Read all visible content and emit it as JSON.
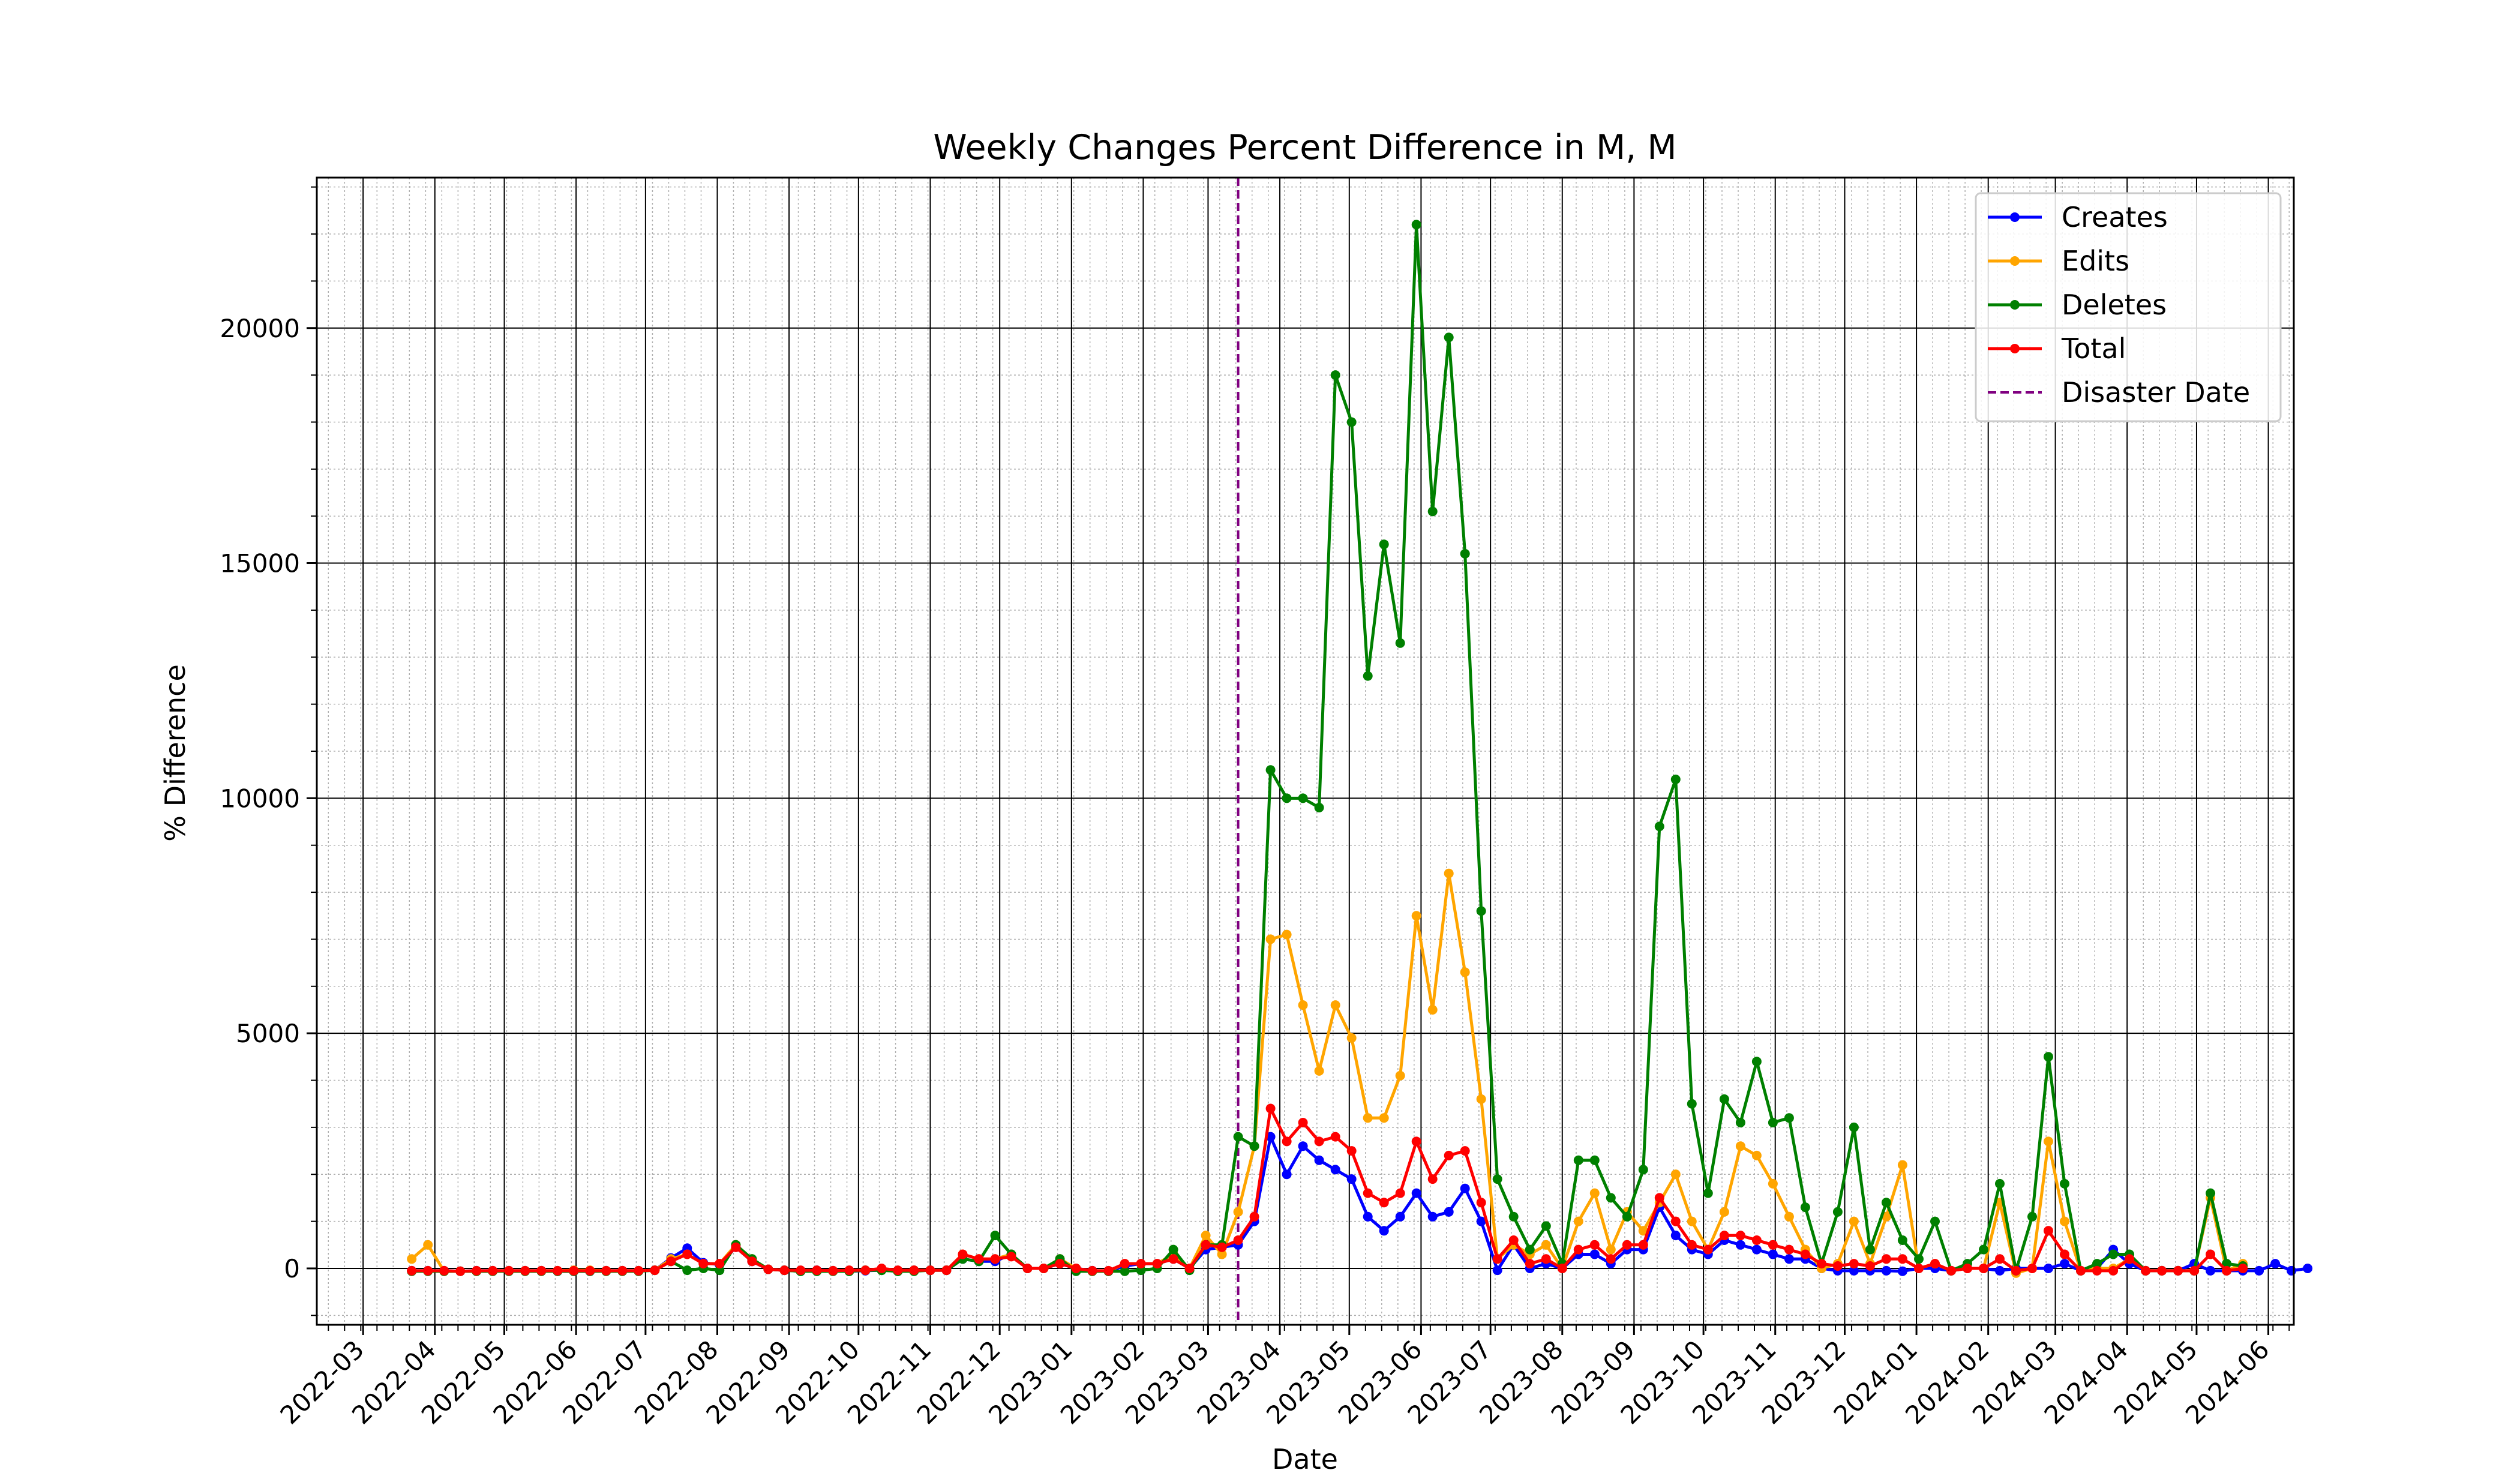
{
  "chart_data": {
    "type": "line",
    "title": "Weekly Changes Percent Difference in M, M",
    "xlabel": "Date",
    "ylabel": "% Difference",
    "ylim": [
      -1200,
      23200
    ],
    "xlim": [
      "2022-02-09",
      "2024-06-12"
    ],
    "grid": true,
    "legend_position": "upper right",
    "yticks": [
      0,
      5000,
      10000,
      15000,
      20000
    ],
    "xticks": [
      "2022-03",
      "2022-04",
      "2022-05",
      "2022-06",
      "2022-07",
      "2022-08",
      "2022-09",
      "2022-10",
      "2022-11",
      "2022-12",
      "2023-01",
      "2023-02",
      "2023-03",
      "2023-04",
      "2023-05",
      "2023-06",
      "2023-07",
      "2023-08",
      "2023-09",
      "2023-10",
      "2023-11",
      "2023-12",
      "2024-01",
      "2024-02",
      "2024-03",
      "2024-04",
      "2024-05",
      "2024-06"
    ],
    "disaster_date": "2023-03-14",
    "x_start": "2022-03-22",
    "x_step_days": 7,
    "series": [
      {
        "name": "Creates",
        "color": "#0000ff",
        "values": [
          -50,
          -50,
          -50,
          -60,
          -50,
          -50,
          -50,
          -50,
          -50,
          -60,
          -60,
          -60,
          -50,
          -50,
          -50,
          -40,
          220,
          430,
          120,
          80,
          450,
          150,
          -20,
          -40,
          -60,
          -40,
          -50,
          -60,
          -50,
          -40,
          -60,
          -40,
          -40,
          -40,
          200,
          150,
          150,
          300,
          0,
          0,
          100,
          0,
          -50,
          -60,
          50,
          100,
          100,
          200,
          0,
          400,
          450,
          500,
          1000,
          2800,
          2000,
          2600,
          2300,
          2100,
          1900,
          1100,
          800,
          1100,
          1600,
          1100,
          1200,
          1700,
          1000,
          -40,
          500,
          0,
          100,
          0,
          300,
          300,
          100,
          400,
          400,
          1300,
          700,
          400,
          300,
          600,
          500,
          400,
          300,
          200,
          200,
          0,
          -50,
          -50,
          -50,
          -50,
          -60,
          0,
          0,
          -50,
          0,
          0,
          -50,
          0,
          0,
          0,
          100,
          -50,
          0,
          400,
          100,
          -50,
          -50,
          -50,
          100,
          -50,
          -50,
          -50,
          -50,
          100,
          -50,
          0
        ]
      },
      {
        "name": "Edits",
        "color": "#ffa500",
        "values": [
          200,
          500,
          -60,
          -60,
          -60,
          -50,
          -50,
          -50,
          -50,
          -50,
          -40,
          -40,
          -50,
          -50,
          -50,
          -40,
          200,
          300,
          100,
          100,
          500,
          200,
          -20,
          -40,
          -60,
          -50,
          -50,
          -60,
          -40,
          -40,
          -60,
          -40,
          -40,
          -40,
          300,
          200,
          200,
          300,
          0,
          0,
          200,
          0,
          -60,
          -60,
          100,
          100,
          100,
          300,
          0,
          700,
          300,
          1200,
          2600,
          7000,
          7100,
          5600,
          4200,
          5600,
          4900,
          3200,
          3200,
          4100,
          7500,
          5500,
          8400,
          6300,
          3600,
          200,
          500,
          300,
          500,
          0,
          1000,
          1600,
          400,
          1200,
          800,
          1400,
          2000,
          1000,
          400,
          1200,
          2600,
          2400,
          1800,
          1100,
          400,
          0,
          100,
          1000,
          100,
          1100,
          2200,
          0,
          100,
          -50,
          0,
          0,
          1400,
          -100,
          0,
          2700,
          1000,
          -50,
          0,
          0,
          200,
          -50,
          -50,
          -50,
          -50,
          1500,
          -50,
          100
        ]
      },
      {
        "name": "Deletes",
        "color": "#008000",
        "values": [
          -60,
          -60,
          -60,
          -60,
          -60,
          -60,
          -60,
          -60,
          -60,
          -60,
          -60,
          -60,
          -60,
          -60,
          -60,
          -40,
          150,
          -40,
          0,
          -40,
          500,
          200,
          -20,
          -40,
          -60,
          -60,
          -60,
          -60,
          -40,
          -40,
          -60,
          -60,
          -40,
          -40,
          200,
          150,
          700,
          300,
          0,
          0,
          200,
          -60,
          -60,
          -60,
          -60,
          -40,
          0,
          400,
          -40,
          500,
          500,
          2800,
          2600,
          10600,
          10000,
          10000,
          9800,
          19000,
          18000,
          12600,
          15400,
          13300,
          22200,
          16100,
          19800,
          15200,
          7600,
          1900,
          1100,
          400,
          900,
          100,
          2300,
          2300,
          1500,
          1100,
          2100,
          9400,
          10400,
          3500,
          1600,
          3600,
          3100,
          4400,
          3100,
          3200,
          1300,
          100,
          1200,
          3000,
          400,
          1400,
          600,
          200,
          1000,
          -50,
          100,
          400,
          1800,
          -50,
          1100,
          4500,
          1800,
          -50,
          100,
          300,
          300,
          -50,
          -50,
          -50,
          -50,
          1600,
          100,
          50
        ]
      },
      {
        "name": "Total",
        "color": "#ff0000",
        "values": [
          -50,
          -50,
          -50,
          -60,
          -50,
          -50,
          -50,
          -50,
          -50,
          -50,
          -50,
          -50,
          -50,
          -50,
          -50,
          -40,
          150,
          300,
          100,
          100,
          450,
          150,
          -20,
          -40,
          -40,
          -40,
          -50,
          -40,
          -40,
          0,
          -40,
          -40,
          -40,
          -40,
          300,
          200,
          200,
          250,
          0,
          0,
          100,
          0,
          -50,
          -50,
          100,
          100,
          100,
          200,
          0,
          500,
          450,
          600,
          1100,
          3400,
          2700,
          3100,
          2700,
          2800,
          2500,
          1600,
          1400,
          1600,
          2700,
          1900,
          2400,
          2500,
          1400,
          200,
          600,
          100,
          200,
          0,
          400,
          500,
          200,
          500,
          500,
          1500,
          1000,
          500,
          400,
          700,
          700,
          600,
          500,
          400,
          300,
          100,
          50,
          100,
          50,
          200,
          200,
          0,
          100,
          -50,
          0,
          0,
          200,
          -50,
          0,
          800,
          300,
          -50,
          -50,
          -50,
          200,
          -50,
          -50,
          -50,
          -50,
          300,
          -50,
          0
        ]
      }
    ]
  },
  "legend": {
    "entries": [
      "Creates",
      "Edits",
      "Deletes",
      "Total",
      "Disaster Date"
    ]
  }
}
